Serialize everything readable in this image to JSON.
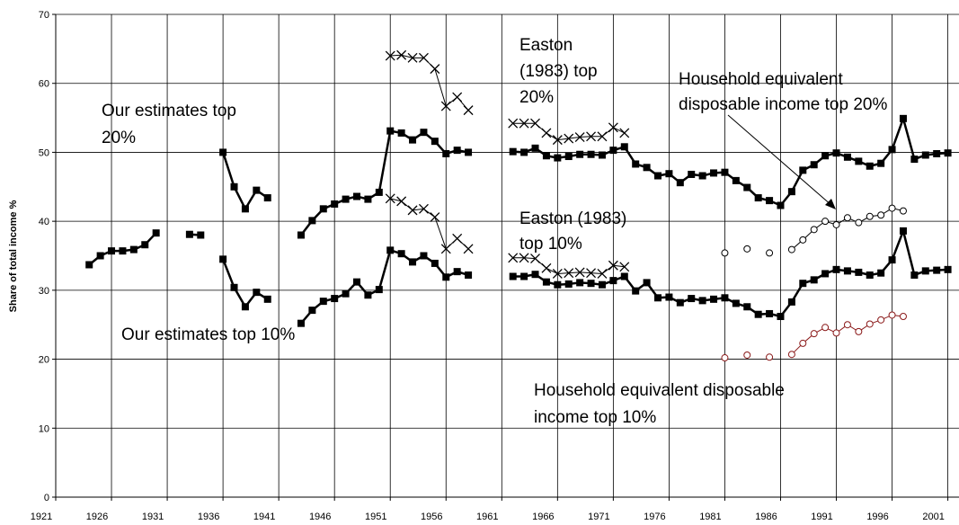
{
  "chart_data": {
    "type": "line",
    "y_label": "Share of total income %",
    "xlim": [
      1921,
      2002
    ],
    "xticks": [
      1921,
      1926,
      1931,
      1936,
      1941,
      1946,
      1951,
      1956,
      1961,
      1966,
      1971,
      1976,
      1981,
      1986,
      1991,
      1996,
      2001
    ],
    "ylim": [
      0,
      70
    ],
    "yticks": [
      0,
      10,
      20,
      30,
      40,
      50,
      60,
      70
    ],
    "grid": true,
    "x": [
      1924,
      1925,
      1926,
      1927,
      1928,
      1929,
      1930,
      1931,
      1932,
      1933,
      1934,
      1935,
      1936,
      1937,
      1938,
      1939,
      1940,
      1941,
      1942,
      1943,
      1944,
      1945,
      1946,
      1947,
      1948,
      1949,
      1950,
      1951,
      1952,
      1953,
      1954,
      1955,
      1956,
      1957,
      1958,
      1959,
      1960,
      1961,
      1962,
      1963,
      1964,
      1965,
      1966,
      1967,
      1968,
      1969,
      1970,
      1971,
      1972,
      1973,
      1974,
      1975,
      1976,
      1977,
      1978,
      1979,
      1980,
      1981,
      1982,
      1983,
      1984,
      1985,
      1986,
      1987,
      1988,
      1989,
      1990,
      1991,
      1992,
      1993,
      1994,
      1995,
      1996,
      1997,
      1998,
      1999,
      2000,
      2001
    ],
    "series": [
      {
        "name": "Our estimates top 20%",
        "color": "#000000",
        "marker": "square",
        "line_width": 2.5,
        "values": [
          33.7,
          35.0,
          35.7,
          35.7,
          35.9,
          36.6,
          38.3,
          null,
          null,
          38.1,
          38.0,
          null,
          50.0,
          45.0,
          41.8,
          44.5,
          43.4,
          null,
          null,
          38.0,
          40.1,
          41.8,
          42.5,
          43.2,
          43.6,
          43.2,
          44.2,
          53.1,
          52.8,
          51.8,
          52.9,
          51.6,
          49.8,
          50.3,
          50.0,
          null,
          null,
          null,
          50.1,
          50.0,
          50.6,
          49.5,
          49.2,
          49.4,
          49.7,
          49.7,
          49.6,
          50.3,
          50.8,
          48.3,
          47.8,
          46.6,
          46.9,
          45.6,
          46.8,
          46.6,
          47.0,
          47.1,
          45.9,
          44.9,
          43.4,
          43.0,
          42.3,
          44.3,
          47.4,
          48.2,
          49.5,
          49.9,
          49.3,
          48.7,
          48.0,
          48.4,
          50.4,
          54.9,
          49.0,
          49.6,
          49.8,
          49.9
        ]
      },
      {
        "name": "Our estimates top 10%",
        "color": "#000000",
        "marker": "square",
        "line_width": 2.5,
        "values": [
          null,
          null,
          null,
          null,
          null,
          null,
          null,
          null,
          null,
          null,
          null,
          null,
          34.5,
          30.4,
          27.6,
          29.7,
          28.7,
          null,
          null,
          25.2,
          27.1,
          28.4,
          28.8,
          29.5,
          31.2,
          29.3,
          30.1,
          35.8,
          35.3,
          34.1,
          35.0,
          33.9,
          31.9,
          32.7,
          32.2,
          null,
          null,
          null,
          32.0,
          32.0,
          32.3,
          31.2,
          30.8,
          30.9,
          31.1,
          31.0,
          30.8,
          31.4,
          32.0,
          29.9,
          31.1,
          28.9,
          29.0,
          28.2,
          28.8,
          28.5,
          28.7,
          28.9,
          28.1,
          27.6,
          26.5,
          26.6,
          26.2,
          28.3,
          31.0,
          31.5,
          32.4,
          33.0,
          32.8,
          32.6,
          32.2,
          32.5,
          34.4,
          38.6,
          32.2,
          32.8,
          32.9,
          33.0
        ]
      },
      {
        "name": "Easton (1983) top 20%",
        "color": "#000000",
        "marker": "x",
        "line_width": 1,
        "values": [
          null,
          null,
          null,
          null,
          null,
          null,
          null,
          null,
          null,
          null,
          null,
          null,
          null,
          null,
          null,
          null,
          null,
          null,
          null,
          null,
          null,
          null,
          null,
          null,
          null,
          null,
          null,
          64.0,
          64.1,
          63.7,
          63.7,
          62.1,
          56.7,
          58.0,
          56.1,
          null,
          null,
          null,
          54.2,
          54.2,
          54.2,
          52.8,
          51.8,
          52.0,
          52.2,
          52.3,
          52.3,
          53.6,
          52.8,
          null,
          null,
          null,
          null,
          null,
          null,
          null,
          null,
          null,
          null,
          null,
          null,
          null,
          null,
          null,
          null,
          null,
          null,
          null,
          null,
          null,
          null,
          null,
          null,
          null,
          null,
          null,
          null,
          null
        ]
      },
      {
        "name": "Easton (1983) top 10%",
        "color": "#000000",
        "marker": "x",
        "line_width": 1,
        "values": [
          null,
          null,
          null,
          null,
          null,
          null,
          null,
          null,
          null,
          null,
          null,
          null,
          null,
          null,
          null,
          null,
          null,
          null,
          null,
          null,
          null,
          null,
          null,
          null,
          null,
          null,
          null,
          43.3,
          42.9,
          41.6,
          41.8,
          40.6,
          36.0,
          37.5,
          36.0,
          null,
          null,
          null,
          34.7,
          34.7,
          34.6,
          33.2,
          32.4,
          32.5,
          32.6,
          32.5,
          32.4,
          33.6,
          33.4,
          null,
          null,
          null,
          null,
          null,
          null,
          null,
          null,
          null,
          null,
          null,
          null,
          null,
          null,
          null,
          null,
          null,
          null,
          null,
          null,
          null,
          null,
          null,
          null,
          null,
          null,
          null,
          null,
          null
        ]
      },
      {
        "name": "Household equivalent disposable income top 20%",
        "color": "#000000",
        "marker": "circle",
        "line_width": 1,
        "values": [
          null,
          null,
          null,
          null,
          null,
          null,
          null,
          null,
          null,
          null,
          null,
          null,
          null,
          null,
          null,
          null,
          null,
          null,
          null,
          null,
          null,
          null,
          null,
          null,
          null,
          null,
          null,
          null,
          null,
          null,
          null,
          null,
          null,
          null,
          null,
          null,
          null,
          null,
          null,
          null,
          null,
          null,
          null,
          null,
          null,
          null,
          null,
          null,
          null,
          null,
          null,
          null,
          null,
          null,
          null,
          null,
          null,
          35.4,
          null,
          36.0,
          null,
          35.4,
          null,
          35.9,
          37.3,
          38.8,
          40.0,
          39.5,
          40.5,
          39.8,
          40.7,
          40.9,
          41.9,
          41.5,
          null,
          null,
          null,
          null
        ]
      },
      {
        "name": "Household equivalent disposable income top 10%",
        "color": "#8b1a1a",
        "marker": "circle",
        "line_width": 1,
        "values": [
          null,
          null,
          null,
          null,
          null,
          null,
          null,
          null,
          null,
          null,
          null,
          null,
          null,
          null,
          null,
          null,
          null,
          null,
          null,
          null,
          null,
          null,
          null,
          null,
          null,
          null,
          null,
          null,
          null,
          null,
          null,
          null,
          null,
          null,
          null,
          null,
          null,
          null,
          null,
          null,
          null,
          null,
          null,
          null,
          null,
          null,
          null,
          null,
          null,
          null,
          null,
          null,
          null,
          null,
          null,
          null,
          null,
          20.2,
          null,
          20.6,
          null,
          20.3,
          null,
          20.7,
          22.3,
          23.7,
          24.6,
          23.8,
          25.0,
          24.0,
          25.1,
          25.7,
          26.4,
          26.2,
          null,
          null,
          null,
          null
        ]
      }
    ],
    "annotations": [
      {
        "lines": [
          "Our estimates top",
          "20%"
        ]
      },
      {
        "lines": [
          "Easton",
          "(1983) top",
          "20%"
        ]
      },
      {
        "lines": [
          "Household equivalent",
          "disposable income top 20%"
        ]
      },
      {
        "lines": [
          "Easton (1983)",
          "top 10%"
        ]
      },
      {
        "lines": [
          "Our estimates top 10%"
        ]
      },
      {
        "lines": [
          "Household equivalent disposable",
          "income top 10%"
        ]
      }
    ]
  }
}
